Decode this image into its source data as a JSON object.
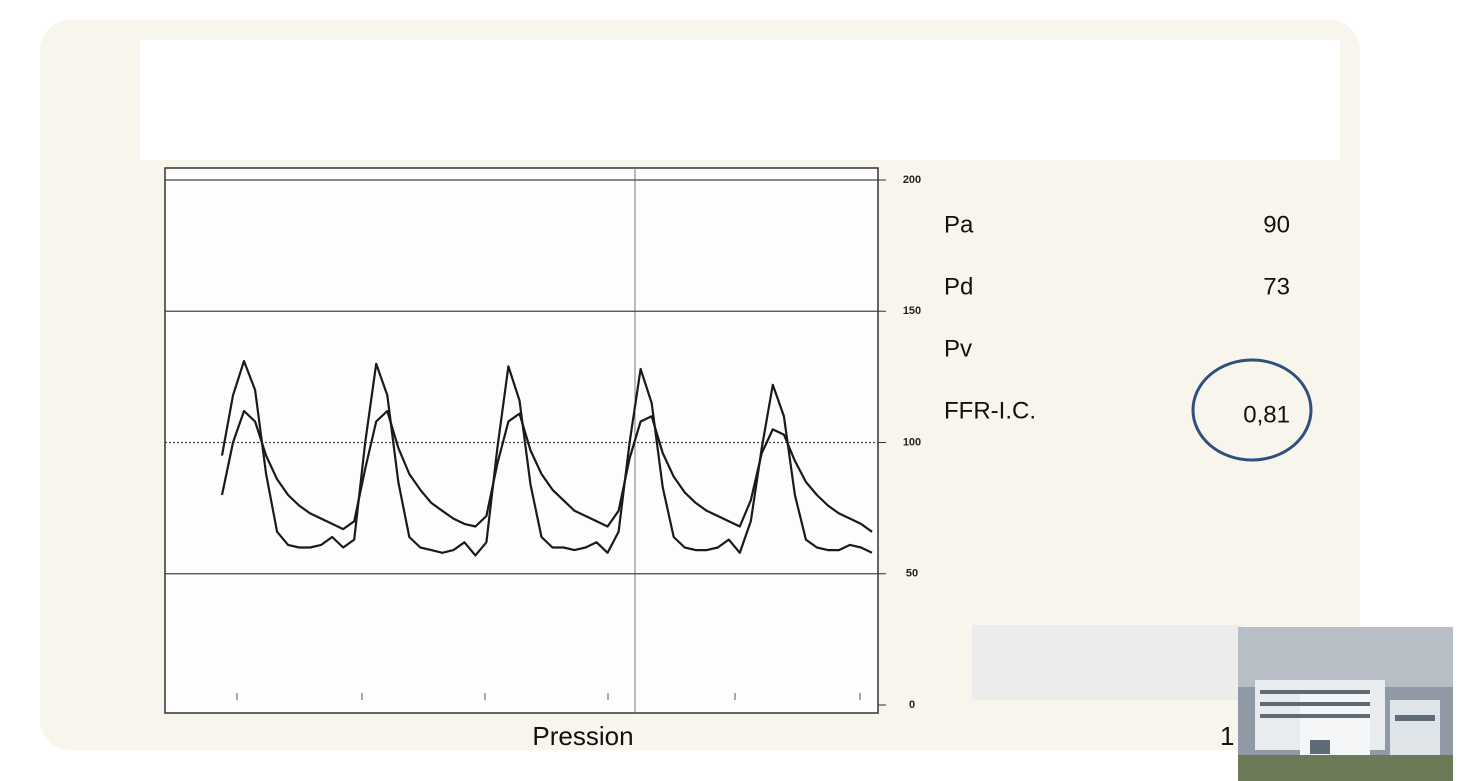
{
  "chart_data": {
    "type": "line",
    "categories": [
      null,
      null,
      null,
      null,
      null,
      null,
      null,
      null,
      null,
      null,
      null,
      null,
      null,
      null,
      null,
      null,
      null,
      null,
      null,
      null,
      null,
      null,
      null,
      null,
      null,
      null,
      null,
      null,
      null,
      null,
      null,
      null,
      null,
      null,
      null,
      null,
      null,
      null,
      null,
      null,
      null,
      null,
      null,
      null,
      null,
      null,
      null,
      null,
      null,
      null,
      null,
      null,
      null,
      null,
      null,
      null,
      null,
      null,
      null,
      null
    ],
    "series": [
      {
        "color": "#1a1a1a",
        "values": [
          95,
          118,
          131,
          120,
          88,
          66,
          61,
          60,
          60,
          61,
          64,
          60,
          63,
          100,
          130,
          118,
          85,
          64,
          60,
          59,
          58,
          59,
          62,
          57,
          62,
          98,
          129,
          116,
          84,
          64,
          60,
          60,
          59,
          60,
          62,
          58,
          66,
          100,
          128,
          115,
          83,
          64,
          60,
          59,
          59,
          60,
          63,
          58,
          70,
          98,
          122,
          110,
          80,
          63,
          60,
          59,
          59,
          61,
          60,
          58
        ]
      },
      {
        "color": "#1a1a1a",
        "values": [
          80,
          100,
          112,
          108,
          95,
          86,
          80,
          76,
          73,
          71,
          69,
          67,
          70,
          90,
          108,
          112,
          98,
          88,
          82,
          77,
          74,
          71,
          69,
          68,
          72,
          92,
          108,
          111,
          97,
          88,
          82,
          78,
          74,
          72,
          70,
          68,
          74,
          94,
          108,
          110,
          96,
          87,
          81,
          77,
          74,
          72,
          70,
          68,
          78,
          96,
          105,
          103,
          93,
          85,
          80,
          76,
          73,
          71,
          69,
          66
        ]
      }
    ],
    "ylim": [
      0,
      200
    ],
    "yticks": [
      0,
      50,
      100,
      150,
      200
    ],
    "grid": true,
    "x_label": "Pression"
  },
  "readout": {
    "rows": [
      {
        "label": "Pa",
        "value": "90"
      },
      {
        "label": "Pd",
        "value": "73"
      },
      {
        "label": "Pv"
      },
      {
        "label": "FFR-I.C.",
        "value": "0,81"
      }
    ]
  },
  "page_number": "1"
}
